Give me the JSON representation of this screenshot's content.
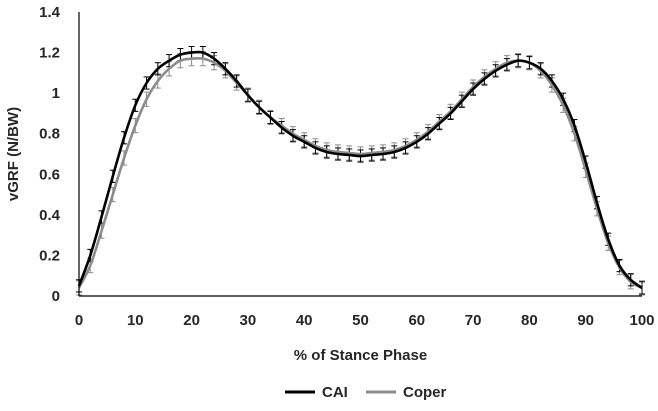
{
  "chart_data": {
    "type": "line",
    "title": "",
    "xlabel": "% of Stance Phase",
    "ylabel": "vGRF (N/BW)",
    "xlim": [
      0,
      100
    ],
    "ylim": [
      0,
      1.4
    ],
    "x_ticks": [
      0,
      10,
      20,
      30,
      40,
      50,
      60,
      70,
      80,
      90,
      100
    ],
    "y_ticks": [
      0,
      0.2,
      0.4,
      0.6,
      0.8,
      1,
      1.2,
      1.4
    ],
    "x_tick_labels": [
      "0",
      "10",
      "20",
      "30",
      "40",
      "50",
      "60",
      "70",
      "80",
      "90",
      "100"
    ],
    "y_tick_labels": [
      "0",
      "0.2",
      "0.4",
      "0.6",
      "0.8",
      "1",
      "1.2",
      "1.4"
    ],
    "grid": false,
    "legend_position": "bottom",
    "error_bars": true,
    "x": [
      0,
      2,
      4,
      6,
      8,
      10,
      12,
      14,
      16,
      18,
      20,
      22,
      24,
      26,
      28,
      30,
      32,
      34,
      36,
      38,
      40,
      42,
      44,
      46,
      48,
      50,
      52,
      54,
      56,
      58,
      60,
      62,
      64,
      66,
      68,
      70,
      72,
      74,
      76,
      78,
      80,
      82,
      84,
      86,
      88,
      90,
      92,
      94,
      96,
      98,
      100
    ],
    "series": [
      {
        "name": "CAI",
        "color": "#000000",
        "error": 0.03,
        "values": [
          0.05,
          0.2,
          0.39,
          0.59,
          0.78,
          0.94,
          1.05,
          1.12,
          1.16,
          1.19,
          1.2,
          1.2,
          1.17,
          1.12,
          1.06,
          0.99,
          0.93,
          0.88,
          0.83,
          0.79,
          0.76,
          0.73,
          0.71,
          0.7,
          0.695,
          0.69,
          0.695,
          0.7,
          0.71,
          0.73,
          0.76,
          0.8,
          0.85,
          0.9,
          0.96,
          1.02,
          1.07,
          1.11,
          1.14,
          1.16,
          1.15,
          1.12,
          1.06,
          0.97,
          0.84,
          0.66,
          0.46,
          0.28,
          0.15,
          0.08,
          0.04
        ]
      },
      {
        "name": "Coper",
        "color": "#8c8c8c",
        "error": 0.035,
        "values": [
          0.04,
          0.15,
          0.32,
          0.5,
          0.68,
          0.84,
          0.97,
          1.06,
          1.12,
          1.16,
          1.17,
          1.17,
          1.15,
          1.11,
          1.05,
          0.99,
          0.93,
          0.88,
          0.84,
          0.8,
          0.77,
          0.74,
          0.72,
          0.71,
          0.705,
          0.7,
          0.705,
          0.71,
          0.72,
          0.74,
          0.77,
          0.81,
          0.86,
          0.91,
          0.97,
          1.03,
          1.08,
          1.12,
          1.15,
          1.16,
          1.15,
          1.11,
          1.04,
          0.94,
          0.8,
          0.62,
          0.43,
          0.26,
          0.14,
          0.07,
          0.04
        ]
      }
    ]
  }
}
